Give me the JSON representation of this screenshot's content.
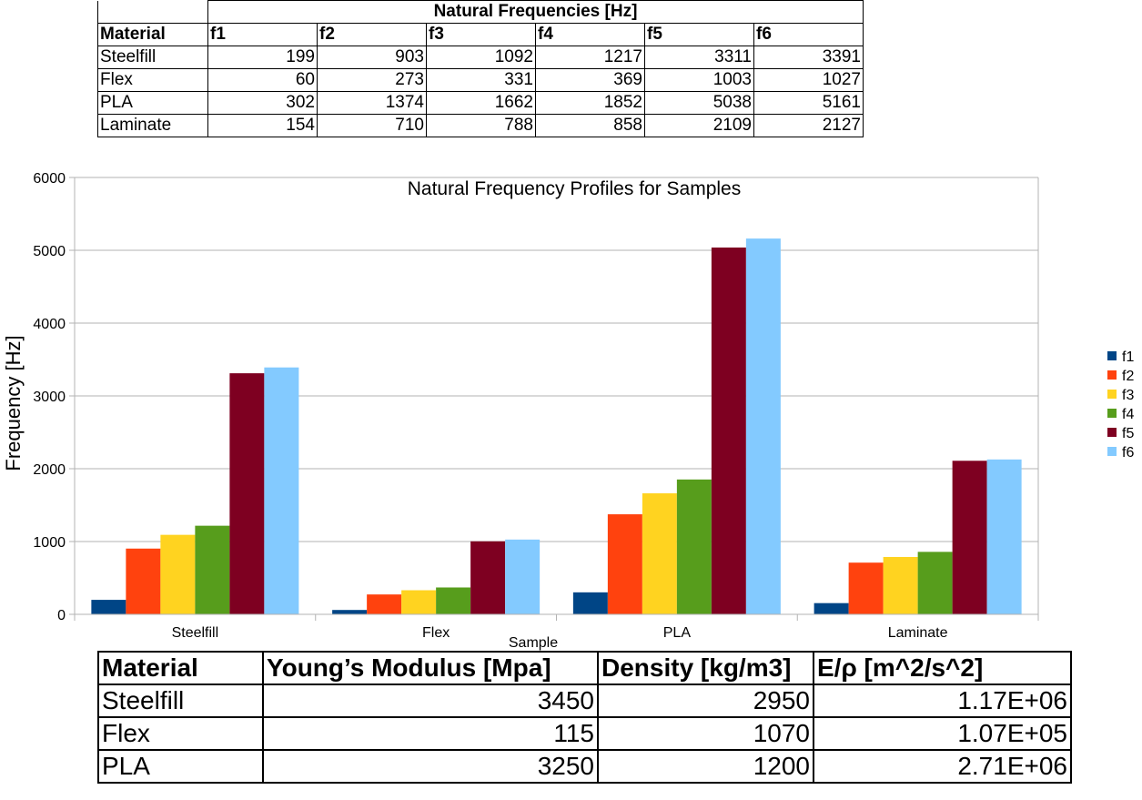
{
  "frequency_table": {
    "title": "Natural Frequencies [Hz]",
    "headers": [
      "Material",
      "f1",
      "f2",
      "f3",
      "f4",
      "f5",
      "f6"
    ],
    "rows": [
      [
        "Steelfill",
        "199",
        "903",
        "1092",
        "1217",
        "3311",
        "3391"
      ],
      [
        "Flex",
        "60",
        "273",
        "331",
        "369",
        "1003",
        "1027"
      ],
      [
        "PLA",
        "302",
        "1374",
        "1662",
        "1852",
        "5038",
        "5161"
      ],
      [
        "Laminate",
        "154",
        "710",
        "788",
        "858",
        "2109",
        "2127"
      ]
    ]
  },
  "chart_data": {
    "type": "bar",
    "title": "Natural Frequency Profiles for Samples",
    "xlabel": "Sample",
    "ylabel": "Frequency [Hz]",
    "categories": [
      "Steelfill",
      "Flex",
      "PLA",
      "Laminate"
    ],
    "series": [
      {
        "name": "f1",
        "color": "#004586",
        "values": [
          199,
          60,
          302,
          154
        ]
      },
      {
        "name": "f2",
        "color": "#ff420e",
        "values": [
          903,
          273,
          1374,
          710
        ]
      },
      {
        "name": "f3",
        "color": "#ffd320",
        "values": [
          1092,
          331,
          1662,
          788
        ]
      },
      {
        "name": "f4",
        "color": "#579d1c",
        "values": [
          1217,
          369,
          1852,
          858
        ]
      },
      {
        "name": "f5",
        "color": "#7e0021",
        "values": [
          3311,
          1003,
          5038,
          2109
        ]
      },
      {
        "name": "f6",
        "color": "#83caff",
        "values": [
          3391,
          1027,
          5161,
          2127
        ]
      }
    ],
    "ylim": [
      0,
      6000
    ],
    "yticks": [
      0,
      1000,
      2000,
      3000,
      4000,
      5000,
      6000
    ],
    "grid": true,
    "legend": "right"
  },
  "modulus_table": {
    "headers": [
      "Material",
      "Young’s Modulus [Mpa]",
      "Density [kg/m3]",
      "E/ρ [m^2/s^2]"
    ],
    "rows": [
      [
        "Steelfill",
        "3450",
        "2950",
        "1.17E+06"
      ],
      [
        "Flex",
        "115",
        "1070",
        "1.07E+05"
      ],
      [
        "PLA",
        "3250",
        "1200",
        "2.71E+06"
      ]
    ]
  }
}
